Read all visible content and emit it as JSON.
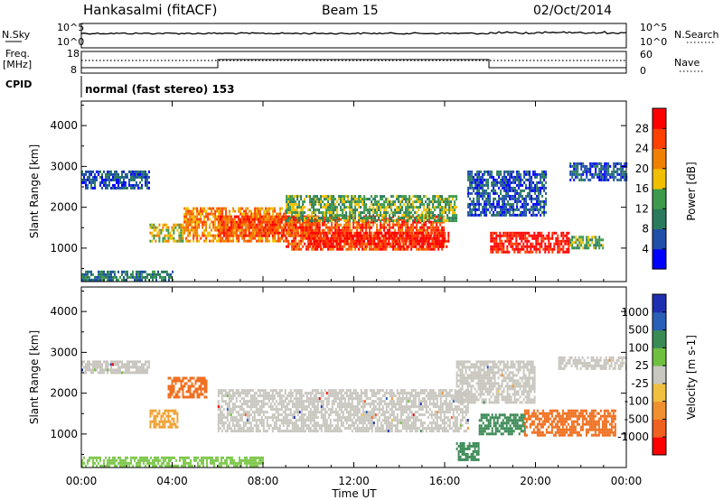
{
  "header": {
    "station": "Hankasalmi (fitACF)",
    "beam": "Beam 15",
    "date": "02/Oct/2014"
  },
  "status_panel": {
    "nsky_label": "N.Sky",
    "nsearch_label": "N.Search",
    "freq_label": "Freq.",
    "freq_unit": "[MHz]",
    "nave_label": "Nave",
    "cpid_label": "CPID",
    "cpid_text": "normal (fast stereo) 153",
    "noise_ticks_left": [
      "10^5",
      "10^0"
    ],
    "noise_ticks_right": [
      "10^5",
      "10^0"
    ],
    "freq_ticks": [
      "18",
      "8"
    ],
    "nave_ticks": [
      "60",
      "0"
    ]
  },
  "colors": {
    "power": [
      "#0000ff",
      "#1f4fa8",
      "#2a7a5e",
      "#3d9a4a",
      "#f0c000",
      "#f08000",
      "#ff4000",
      "#ff0000"
    ],
    "velocity": [
      "#1e2fb0",
      "#2a5fb8",
      "#3a8a55",
      "#70c040",
      "#c8c8c0",
      "#f0c040",
      "#f09030",
      "#f06020",
      "#ff0000"
    ],
    "ground_scatter": "#c8c6be"
  },
  "chart_data": [
    {
      "type": "heatmap",
      "title": "",
      "xlabel": "Time UT",
      "ylabel": "Slant Range [km]",
      "x_range": [
        "00:00",
        "00:00"
      ],
      "x_ticks": [
        "00:00",
        "04:00",
        "08:00",
        "12:00",
        "16:00",
        "20:00",
        "00:00"
      ],
      "y_range": [
        180,
        4600
      ],
      "y_ticks": [
        1000,
        2000,
        3000,
        4000
      ],
      "colorbar": {
        "label": "Power [dB]",
        "ticks": [
          4,
          8,
          12,
          16,
          20,
          24,
          28
        ],
        "range": [
          0,
          32
        ]
      },
      "regions": [
        {
          "t0": 0.0,
          "t1": 3.0,
          "r0": 2500,
          "r1": 2900,
          "level": 1
        },
        {
          "t0": 3.0,
          "t1": 4.5,
          "r0": 1200,
          "r1": 1600,
          "level": 4
        },
        {
          "t0": 4.5,
          "t1": 9.0,
          "r0": 1200,
          "r1": 2000,
          "level": 5
        },
        {
          "t0": 6.0,
          "t1": 10.5,
          "r0": 1300,
          "r1": 1800,
          "level": 6
        },
        {
          "t0": 9.0,
          "t1": 16.0,
          "r0": 1000,
          "r1": 1800,
          "level": 6
        },
        {
          "t0": 10.0,
          "t1": 16.2,
          "r0": 1050,
          "r1": 1400,
          "level": 7
        },
        {
          "t0": 9.0,
          "t1": 16.5,
          "r0": 1700,
          "r1": 2300,
          "level": 3
        },
        {
          "t0": 17.0,
          "t1": 20.5,
          "r0": 1800,
          "r1": 2900,
          "level": 1
        },
        {
          "t0": 18.0,
          "t1": 21.5,
          "r0": 900,
          "r1": 1400,
          "level": 7
        },
        {
          "t0": 21.5,
          "t1": 23.0,
          "r0": 1000,
          "r1": 1300,
          "level": 3
        },
        {
          "t0": 21.5,
          "t1": 24.0,
          "r0": 2700,
          "r1": 3100,
          "level": 1
        },
        {
          "t0": 0.0,
          "t1": 4.0,
          "r0": 250,
          "r1": 450,
          "level": 2
        }
      ]
    },
    {
      "type": "heatmap",
      "title": "",
      "xlabel": "Time UT",
      "ylabel": "Slant Range [km]",
      "x_range": [
        "00:00",
        "00:00"
      ],
      "x_ticks": [
        "00:00",
        "04:00",
        "08:00",
        "12:00",
        "16:00",
        "20:00",
        "00:00"
      ],
      "y_range": [
        180,
        4600
      ],
      "y_ticks": [
        1000,
        2000,
        3000,
        4000
      ],
      "colorbar": {
        "label": "Velocity [m s-1]",
        "ticks": [
          "1000",
          "500",
          "100",
          "25",
          "-25",
          "-100",
          "-500",
          "-1000"
        ]
      },
      "regions": [
        {
          "t0": 0.0,
          "t1": 3.0,
          "r0": 2500,
          "r1": 2800,
          "kind": "gs"
        },
        {
          "t0": 6.0,
          "t1": 17.0,
          "r0": 1100,
          "r1": 2100,
          "kind": "gs"
        },
        {
          "t0": 16.5,
          "t1": 20.0,
          "r0": 1800,
          "r1": 2800,
          "kind": "gs"
        },
        {
          "t0": 21.0,
          "t1": 24.0,
          "r0": 2600,
          "r1": 2900,
          "kind": "gs"
        },
        {
          "t0": 3.0,
          "t1": 4.2,
          "r0": 1200,
          "r1": 1600,
          "kind": "neg100"
        },
        {
          "t0": 3.8,
          "t1": 5.5,
          "r0": 1900,
          "r1": 2400,
          "kind": "neg500"
        },
        {
          "t0": 17.5,
          "t1": 19.5,
          "r0": 1000,
          "r1": 1500,
          "kind": "pos100"
        },
        {
          "t0": 19.5,
          "t1": 23.5,
          "r0": 1000,
          "r1": 1600,
          "kind": "neg500"
        },
        {
          "t0": 16.5,
          "t1": 17.5,
          "r0": 400,
          "r1": 800,
          "kind": "pos100"
        },
        {
          "t0": 0.0,
          "t1": 8.0,
          "r0": 250,
          "r1": 450,
          "kind": "pos25"
        }
      ]
    }
  ]
}
